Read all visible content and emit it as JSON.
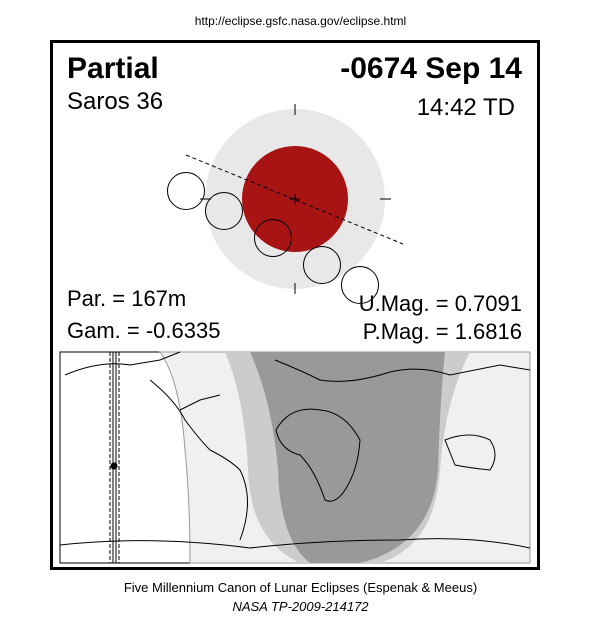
{
  "url": "http://eclipse.gsfc.nasa.gov/eclipse.html",
  "eclipse": {
    "type": "Partial",
    "date": "-0674 Sep 14",
    "saros": "Saros  36",
    "time": "14:42 TD",
    "par": "Par. = 167m",
    "gam": "Gam. = -0.6335",
    "umag": "U.Mag. = 0.7091",
    "pmag": "P.Mag. = 1.6816"
  },
  "colors": {
    "umbra": "#a81414",
    "penumbra": "#e8e8e8",
    "map_dark": "#999999",
    "map_mid": "#cccccc",
    "map_light": "#f0f0f0"
  },
  "footer": {
    "canon": "Five Millennium Canon of Lunar Eclipses (Espenak & Meeus)",
    "tp": "NASA TP-2009-214172"
  }
}
